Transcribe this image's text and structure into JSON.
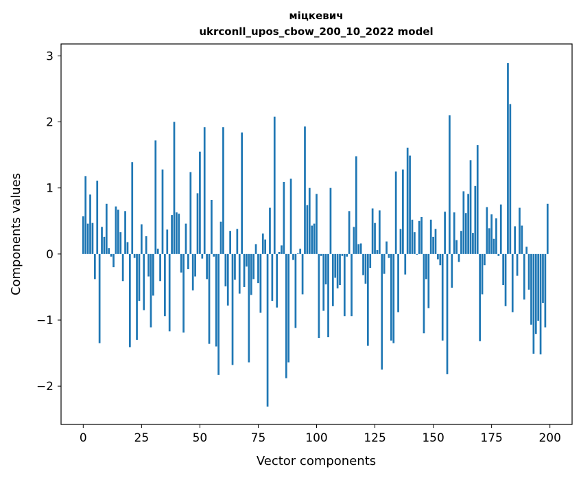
{
  "chart_data": {
    "type": "bar",
    "title": "міцкевич",
    "subtitle": "ukrconll_upos_cbow_200_10_2022 model",
    "xlabel": "Vector components",
    "ylabel": "Components values",
    "xlim": [
      -9.5,
      209.5
    ],
    "ylim": [
      -2.58,
      3.18
    ],
    "xticks": [
      0,
      25,
      50,
      75,
      100,
      125,
      150,
      175,
      200
    ],
    "yticks": [
      -2,
      -1,
      0,
      1,
      2,
      3
    ],
    "ytick_labels": [
      "−2",
      "−1",
      "0",
      "1",
      "2",
      "3"
    ],
    "grid": false,
    "bar_color": "#1f77b4",
    "values": [
      0.57,
      1.18,
      0.46,
      0.9,
      0.47,
      -0.38,
      1.11,
      -1.35,
      0.41,
      0.26,
      0.76,
      0.09,
      -0.04,
      -0.2,
      0.72,
      0.67,
      0.33,
      -0.41,
      0.65,
      0.18,
      -1.41,
      1.39,
      -0.06,
      -1.3,
      -0.71,
      0.45,
      -0.85,
      0.27,
      -0.34,
      -1.11,
      -0.63,
      1.72,
      0.08,
      -0.41,
      1.28,
      -0.94,
      0.37,
      -1.17,
      0.59,
      2.0,
      0.63,
      0.61,
      -0.28,
      -1.19,
      0.46,
      -0.23,
      1.24,
      -0.55,
      -0.34,
      0.92,
      1.55,
      -0.07,
      1.92,
      -0.38,
      -1.36,
      0.82,
      -0.04,
      -1.4,
      -1.83,
      0.49,
      1.92,
      -0.49,
      -0.78,
      0.35,
      -1.68,
      -0.39,
      0.38,
      -0.6,
      1.84,
      -0.5,
      -0.19,
      -1.64,
      -0.62,
      -0.38,
      0.15,
      -0.44,
      -0.89,
      0.31,
      0.22,
      -2.31,
      0.7,
      -0.71,
      2.08,
      -0.81,
      0.03,
      0.13,
      1.09,
      -1.88,
      -1.64,
      1.14,
      -0.09,
      -1.12,
      0.01,
      0.08,
      -0.61,
      1.93,
      0.74,
      1.0,
      0.43,
      0.46,
      0.91,
      -1.27,
      -0.03,
      -0.86,
      -0.46,
      -1.26,
      1.0,
      -0.79,
      -0.36,
      -0.52,
      -0.47,
      -0.03,
      -0.94,
      -0.04,
      0.65,
      -0.94,
      0.41,
      1.48,
      0.15,
      0.16,
      -0.32,
      -0.45,
      -1.39,
      -0.21,
      0.69,
      0.47,
      0.06,
      0.66,
      -1.75,
      -0.3,
      0.19,
      -0.06,
      -1.31,
      -1.35,
      1.25,
      -0.88,
      0.38,
      1.28,
      -0.31,
      1.61,
      1.49,
      0.52,
      0.33,
      -0.01,
      0.5,
      0.56,
      -1.2,
      -0.38,
      -0.82,
      0.52,
      0.26,
      0.38,
      -0.08,
      -0.17,
      -1.31,
      0.64,
      -1.82,
      2.1,
      -0.51,
      0.63,
      0.21,
      -0.12,
      0.35,
      0.95,
      0.62,
      0.91,
      1.42,
      0.32,
      1.03,
      1.65,
      -1.32,
      -0.61,
      -0.17,
      0.71,
      0.39,
      0.6,
      0.23,
      0.54,
      -0.03,
      0.75,
      -0.47,
      -0.79,
      2.89,
      2.27,
      -0.88,
      0.42,
      -0.33,
      0.7,
      0.43,
      -0.69,
      0.11,
      -0.54,
      -1.07,
      -1.51,
      -1.21,
      -1.01,
      -1.52,
      -0.74,
      -1.11,
      0.76
    ]
  }
}
